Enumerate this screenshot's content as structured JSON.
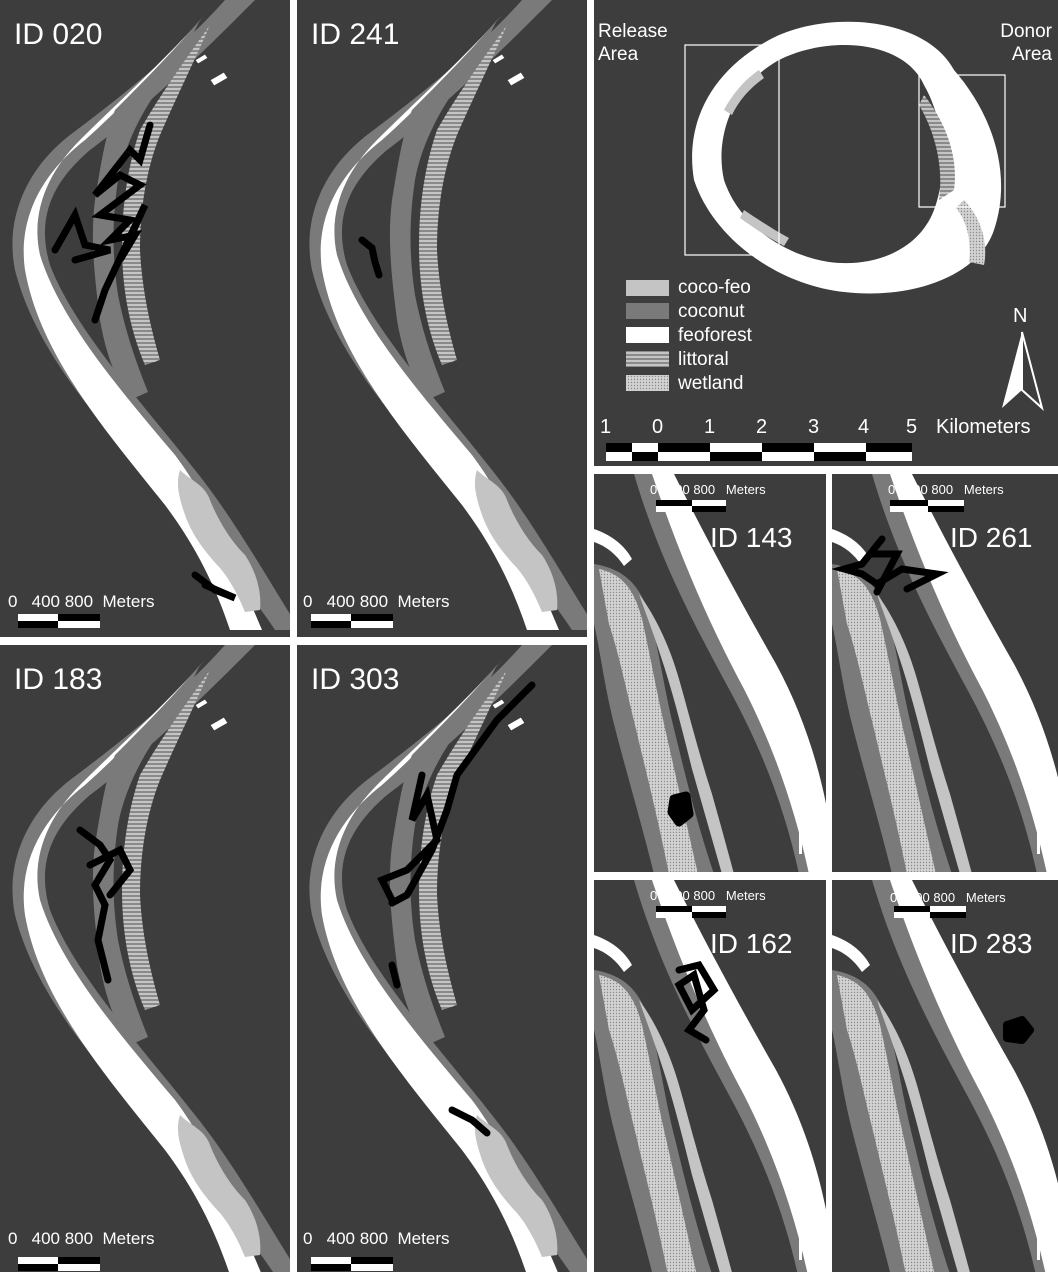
{
  "colors": {
    "background": "#3d3d3d",
    "coco_feo": "#c4c4c4",
    "coconut": "#7a7a7a",
    "feoforest": "#ffffff",
    "track": "#000000",
    "divider": "#ffffff"
  },
  "icons": [
    "north-arrow-icon",
    "scale-bar-icon",
    "legend-swatch-icon"
  ],
  "panels": {
    "id020": {
      "title": "ID 020",
      "scale": "0   400 800  Meters"
    },
    "id241": {
      "title": "ID 241",
      "scale": "0   400 800  Meters"
    },
    "id183": {
      "title": "ID 183",
      "scale": "0   400 800  Meters"
    },
    "id303": {
      "title": "ID 303",
      "scale": "0   400 800  Meters"
    },
    "id143": {
      "title": "ID 143",
      "scale": "0   400 800   Meters"
    },
    "id261": {
      "title": "ID 261",
      "scale": "0   400 800   Meters"
    },
    "id162": {
      "title": "ID 162",
      "scale": "0   400 800   Meters"
    },
    "id283": {
      "title": "ID 283",
      "scale": "0   400 800   Meters"
    }
  },
  "overview": {
    "release_line1": "Release",
    "release_line2": "Area",
    "donor_line1": "Donor",
    "donor_line2": "Area",
    "north": "N",
    "legend": [
      "coco-feo",
      "coconut",
      "feoforest",
      "littoral",
      "wetland"
    ],
    "km_ticks": [
      "1",
      "0",
      "1",
      "2",
      "3",
      "4",
      "5"
    ],
    "km_unit": "Kilometers"
  }
}
